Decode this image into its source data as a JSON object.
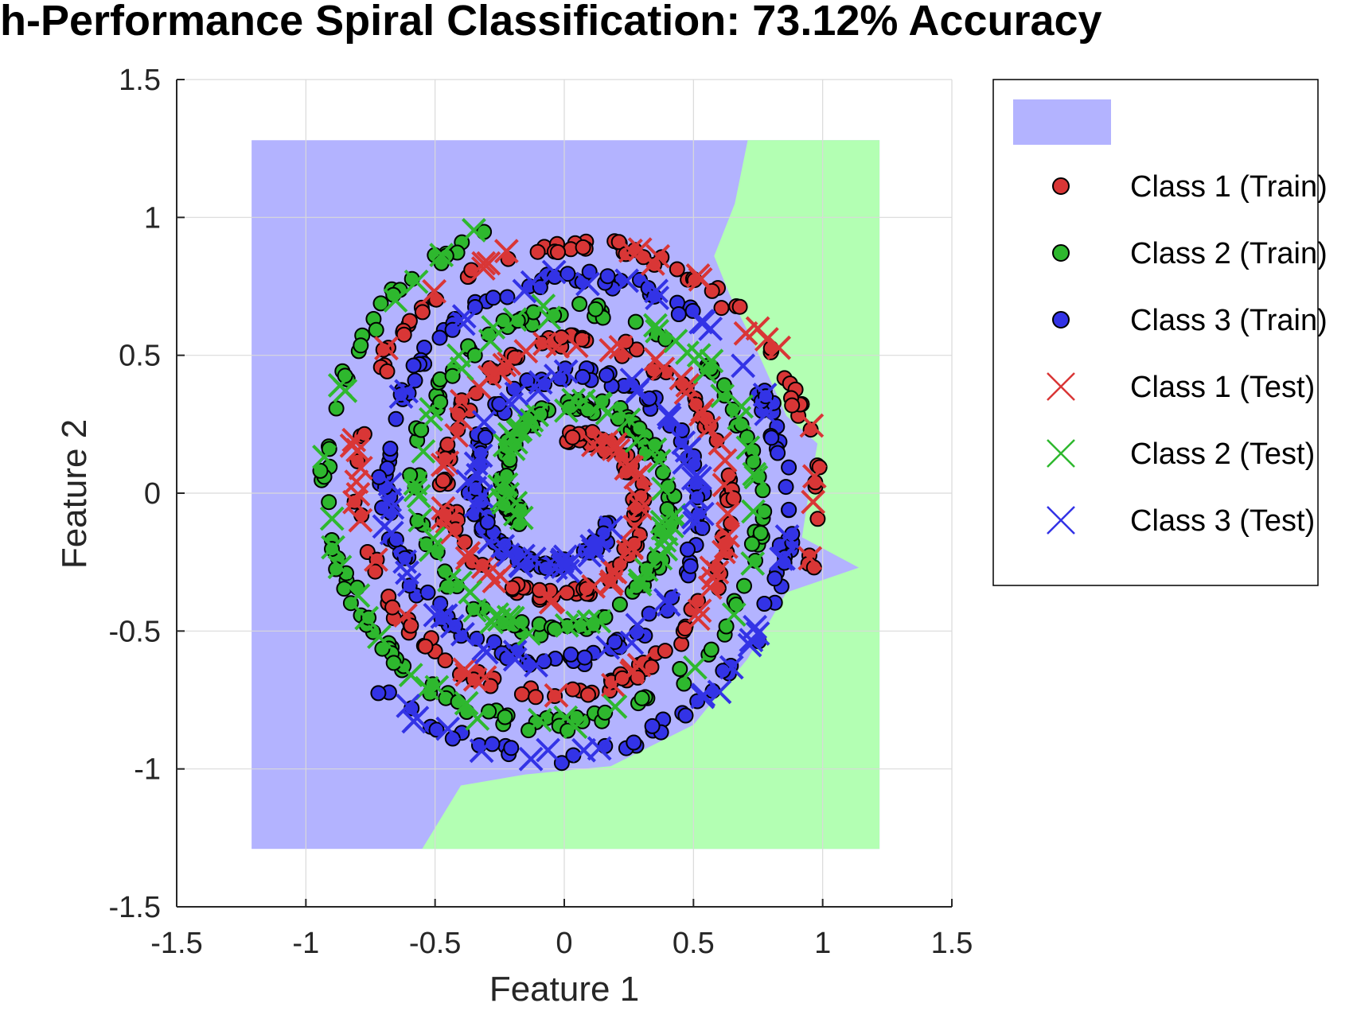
{
  "chart_data": {
    "type": "scatter",
    "title": "h-Performance Spiral Classification: 73.12% Accuracy",
    "xlabel": "Feature 1",
    "ylabel": "Feature 2",
    "xlim": [
      -1.5,
      1.5
    ],
    "ylim": [
      -1.5,
      1.5
    ],
    "xticks": [
      -1.5,
      -1,
      -0.5,
      0,
      0.5,
      1,
      1.5
    ],
    "yticks": [
      -1.5,
      -1,
      -0.5,
      0,
      0.5,
      1,
      1.5
    ],
    "xtick_labels": [
      "-1.5",
      "-1",
      "-0.5",
      "0",
      "0.5",
      "1",
      "1.5"
    ],
    "ytick_labels": [
      "-1.5",
      "-1",
      "-0.5",
      "0",
      "0.5",
      "1",
      "1.5"
    ],
    "grid": true,
    "legend_position": "outside-right",
    "decision_region": {
      "x_range": [
        -1.21,
        1.22
      ],
      "y_range": [
        -1.29,
        1.28
      ],
      "regions": [
        {
          "class": "Class 1",
          "color": "#ffb3b3"
        },
        {
          "class": "Class 2",
          "color": "#b3ffb3"
        },
        {
          "class": "Class 3",
          "color": "#b3b3ff"
        }
      ],
      "dominant_color": "#b3b3ff",
      "secondary_color": "#b3ffb3"
    },
    "spiral": {
      "arms": 3,
      "t_range": [
        0,
        1
      ],
      "radius_range": [
        0.2,
        1.0
      ],
      "turns": 2.3
    },
    "series": [
      {
        "name": "Class 1 (Train)",
        "marker": "circle",
        "color": "#d93636",
        "edge": "#000000",
        "start_angle_deg": 90
      },
      {
        "name": "Class 2 (Train)",
        "marker": "circle",
        "color": "#2eb82e",
        "edge": "#000000",
        "start_angle_deg": 210
      },
      {
        "name": "Class 3 (Train)",
        "marker": "circle",
        "color": "#3333e6",
        "edge": "#000000",
        "start_angle_deg": 330
      },
      {
        "name": "Class 1 (Test)",
        "marker": "x",
        "color": "#d93636",
        "start_angle_deg": 90
      },
      {
        "name": "Class 2 (Test)",
        "marker": "x",
        "color": "#2eb82e",
        "start_angle_deg": 210
      },
      {
        "name": "Class 3 (Test)",
        "marker": "x",
        "color": "#3333e6",
        "start_angle_deg": 330
      }
    ],
    "legend_patch_color": "#b3b3ff"
  }
}
